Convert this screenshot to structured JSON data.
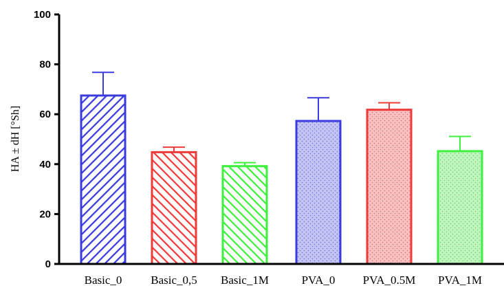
{
  "chart_data": {
    "type": "bar",
    "title": "",
    "xlabel": "",
    "ylabel": "HA ± dH [°Sh]",
    "ylim": [
      0,
      100
    ],
    "yticks": [
      0,
      20,
      40,
      60,
      80,
      100
    ],
    "grid": false,
    "categories": [
      "Basic_0",
      "Basic_0,5",
      "Basic_1M",
      "PVA_0",
      "PVA_0.5M",
      "PVA_1M"
    ],
    "values": [
      67.5,
      44.8,
      39.2,
      57.3,
      61.8,
      45.2
    ],
    "errors": [
      9.3,
      2.0,
      1.4,
      9.3,
      2.8,
      5.9
    ],
    "colors": [
      "#3a3adf",
      "#ef3a3a",
      "#3ef03e",
      "#3a3adf",
      "#ef3a3a",
      "#3ef03e"
    ],
    "fill_patterns": [
      "diagonal-hatch",
      "diagonal-hatch",
      "diagonal-hatch",
      "dotted",
      "dotted",
      "dotted"
    ]
  }
}
